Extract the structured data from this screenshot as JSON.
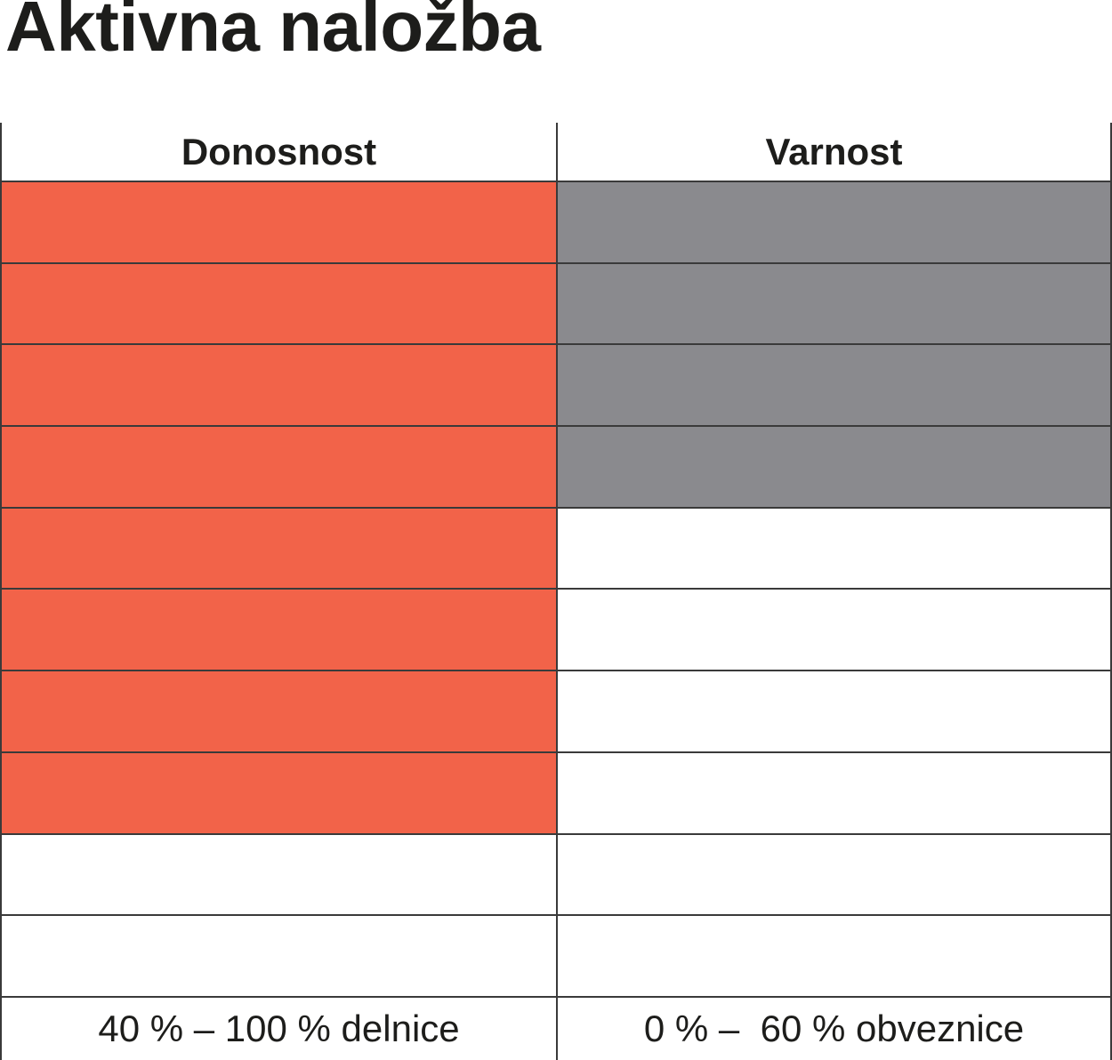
{
  "title": "Aktivna naložba",
  "chart_data": {
    "type": "table",
    "title": "Aktivna naložba",
    "description": "Rating grid: each column has 10 equal segments, filled from the top down to indicate the rating level.",
    "categories": [
      "Donosnost",
      "Varnost"
    ],
    "series": [
      {
        "name": "filled_segments_of_10",
        "values": [
          8,
          4
        ]
      }
    ],
    "segments_total": 10,
    "footnotes": [
      "40 % – 100 % delnice",
      "0 % –  60 % obveznice"
    ],
    "fill_colors": [
      "#f26349",
      "#8a8a8e"
    ],
    "grid": "on",
    "legend": "none"
  },
  "table": {
    "total_rows": 10,
    "columns": [
      {
        "id": "donosnost",
        "header": "Donosnost",
        "filled_rows": 8,
        "fill_color": "#f26349",
        "footer": "40 % – 100 % delnice"
      },
      {
        "id": "varnost",
        "header": "Varnost",
        "filled_rows": 4,
        "fill_color": "#8a8a8e",
        "footer": "0 % –  60 % obveznice"
      }
    ]
  },
  "colors": {
    "text": "#1d1d1b",
    "line": "#3a3a3a",
    "background": "#ffffff",
    "donosnost_fill": "#f26349",
    "varnost_fill": "#8a8a8e"
  }
}
